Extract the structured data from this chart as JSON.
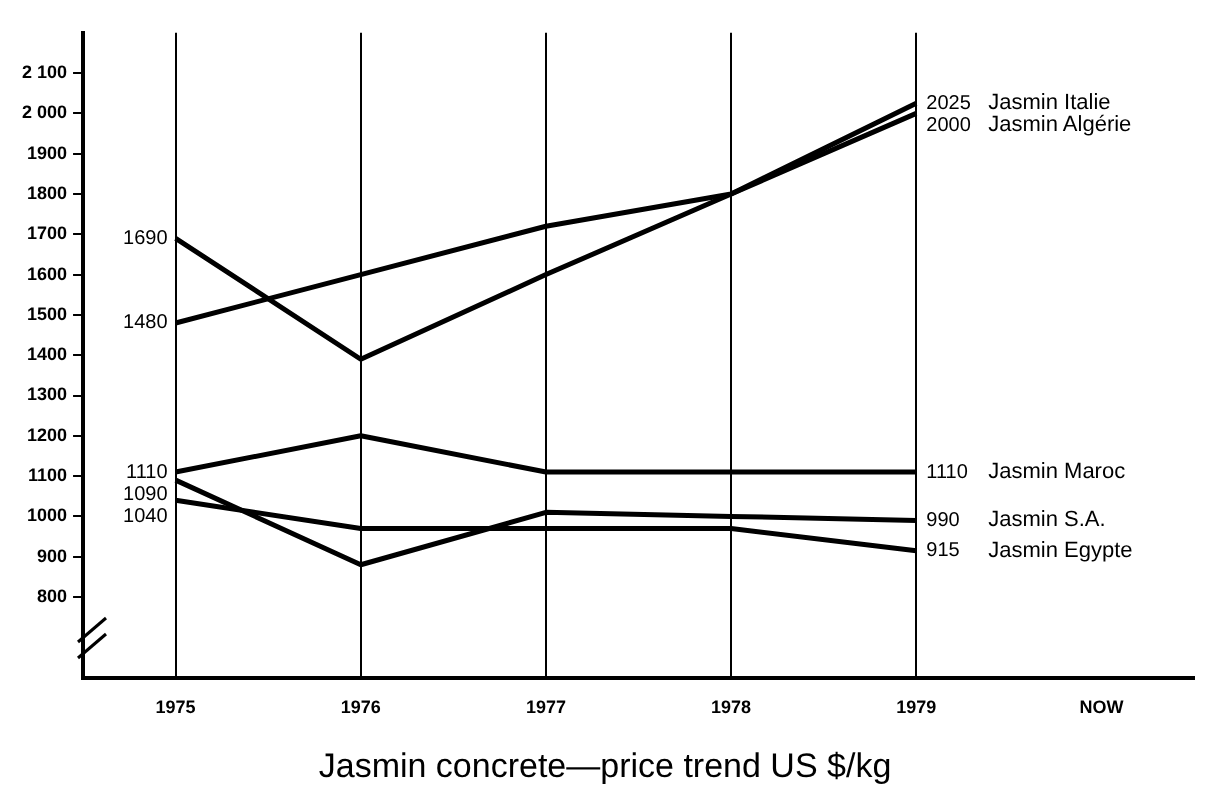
{
  "chart_data": {
    "type": "line",
    "title": "Jasmin concrete—price trend US $/kg",
    "categories": [
      "1975",
      "1976",
      "1977",
      "1978",
      "1979",
      "NOW"
    ],
    "series": [
      {
        "name": "Jasmin Italie",
        "color": "#000000",
        "values": [
          1690,
          1390,
          1600,
          1800,
          2025,
          null
        ],
        "value_labels": [
          "1690",
          null,
          null,
          null,
          "2025",
          null
        ]
      },
      {
        "name": "Jasmin Algérie",
        "color": "#000000",
        "values": [
          1480,
          1600,
          1720,
          1800,
          2000,
          null
        ],
        "value_labels": [
          "1480",
          null,
          null,
          null,
          "2000",
          null
        ]
      },
      {
        "name": "Jasmin Maroc",
        "color": "#000000",
        "values": [
          1110,
          1200,
          1110,
          1110,
          1110,
          null
        ],
        "value_labels": [
          "1110",
          null,
          null,
          null,
          "1110",
          null
        ]
      },
      {
        "name": "Jasmin S.A.",
        "color": "#000000",
        "values": [
          1090,
          880,
          1010,
          1000,
          990,
          null
        ],
        "value_labels": [
          "1090",
          null,
          null,
          null,
          "990",
          null
        ]
      },
      {
        "name": "Jasmin Egypte",
        "color": "#000000",
        "values": [
          1040,
          970,
          970,
          970,
          915,
          null
        ],
        "value_labels": [
          "1040",
          null,
          null,
          null,
          "915",
          null
        ]
      }
    ],
    "ylim": [
      600,
      2200
    ],
    "yticks": [
      800,
      900,
      1000,
      1100,
      1200,
      1300,
      1400,
      1500,
      1600,
      1700,
      1800,
      1900,
      {
        "value": 2000,
        "label": "2 000"
      },
      {
        "value": 2100,
        "label": "2 100"
      }
    ],
    "grid": "x",
    "legend": false,
    "marker": "none",
    "line_style": "solid"
  }
}
